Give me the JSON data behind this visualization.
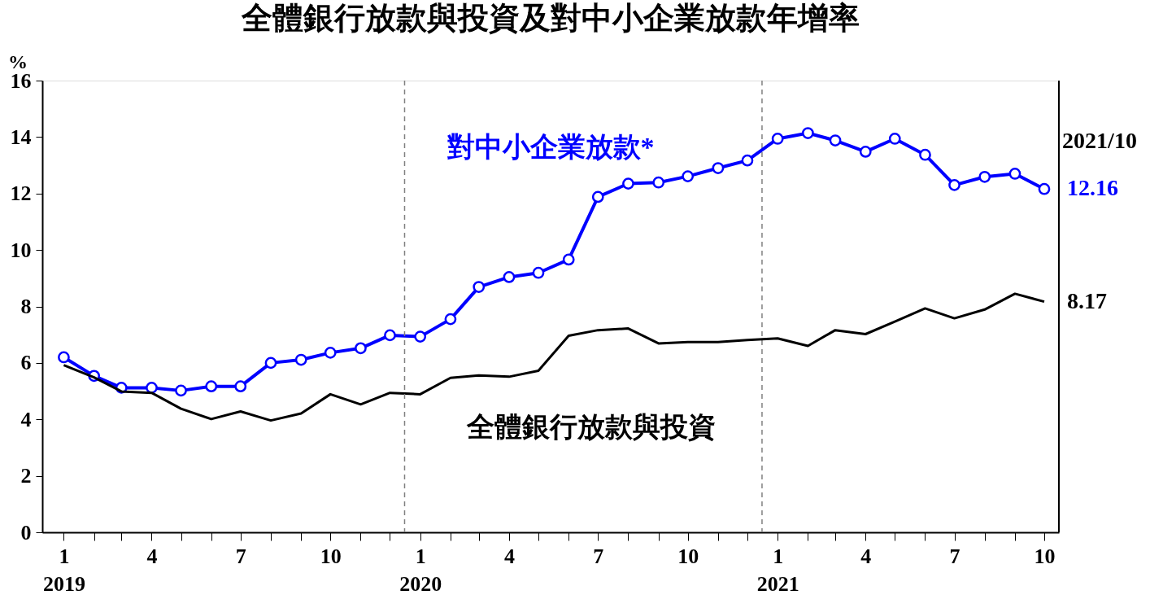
{
  "chart_data": {
    "type": "line",
    "title": "全體銀行放款與投資及對中小企業放款年增率",
    "ylabel": "%",
    "x": [
      "2019-01",
      "2019-02",
      "2019-03",
      "2019-04",
      "2019-05",
      "2019-06",
      "2019-07",
      "2019-08",
      "2019-09",
      "2019-10",
      "2019-11",
      "2019-12",
      "2020-01",
      "2020-02",
      "2020-03",
      "2020-04",
      "2020-05",
      "2020-06",
      "2020-07",
      "2020-08",
      "2020-09",
      "2020-10",
      "2020-11",
      "2020-12",
      "2021-01",
      "2021-02",
      "2021-03",
      "2021-04",
      "2021-05",
      "2021-06",
      "2021-07",
      "2021-08",
      "2021-09",
      "2021-10"
    ],
    "series": [
      {
        "name": "對中小企業放款*",
        "color": "#0000ff",
        "marker": "circle",
        "values": [
          6.2,
          5.54,
          5.12,
          5.12,
          5.02,
          5.17,
          5.17,
          6.0,
          6.11,
          6.36,
          6.52,
          6.98,
          6.93,
          7.55,
          8.69,
          9.04,
          9.19,
          9.66,
          11.88,
          12.35,
          12.39,
          12.61,
          12.9,
          13.17,
          13.94,
          14.14,
          13.88,
          13.48,
          13.94,
          13.37,
          12.3,
          12.59,
          12.7,
          12.16
        ],
        "value_labels": [
          null,
          null,
          null,
          null,
          null,
          null,
          null,
          null,
          null,
          null,
          null,
          null,
          null,
          null,
          null,
          null,
          null,
          null,
          null,
          null,
          null,
          null,
          null,
          null,
          null,
          null,
          null,
          null,
          null,
          null,
          null,
          null,
          null,
          "12.16"
        ]
      },
      {
        "name": "全體銀行放款與投資",
        "color": "#000000",
        "marker": "none",
        "values": [
          5.92,
          5.49,
          4.99,
          4.94,
          4.38,
          4.01,
          4.28,
          3.96,
          4.21,
          4.89,
          4.53,
          4.94,
          4.89,
          5.47,
          5.56,
          5.51,
          5.72,
          6.96,
          7.16,
          7.22,
          6.69,
          6.74,
          6.74,
          6.81,
          6.87,
          6.6,
          7.16,
          7.02,
          7.46,
          7.93,
          7.58,
          7.89,
          8.45,
          8.17
        ],
        "value_labels": [
          null,
          null,
          null,
          null,
          null,
          null,
          null,
          null,
          null,
          null,
          null,
          null,
          null,
          null,
          null,
          null,
          null,
          null,
          null,
          null,
          null,
          null,
          null,
          null,
          null,
          null,
          null,
          null,
          null,
          null,
          null,
          null,
          null,
          "8.17"
        ]
      }
    ],
    "annotations": [
      "2021/10"
    ],
    "xlim": [
      "2018-12-10",
      "2021-10-16"
    ],
    "xticks": [
      {
        "value": "2019-01",
        "label": "1\n2019"
      },
      {
        "value": "2019-02",
        "label": null
      },
      {
        "value": "2019-03",
        "label": null
      },
      {
        "value": "2019-04",
        "label": "4"
      },
      {
        "value": "2019-05",
        "label": null
      },
      {
        "value": "2019-06",
        "label": null
      },
      {
        "value": "2019-07",
        "label": "7"
      },
      {
        "value": "2019-08",
        "label": null
      },
      {
        "value": "2019-09",
        "label": null
      },
      {
        "value": "2019-10",
        "label": "10"
      },
      {
        "value": "2019-11",
        "label": null
      },
      {
        "value": "2019-12",
        "label": null
      },
      {
        "value": "2020-01",
        "label": "1\n2020"
      },
      {
        "value": "2020-02",
        "label": null
      },
      {
        "value": "2020-03",
        "label": null
      },
      {
        "value": "2020-04",
        "label": "4"
      },
      {
        "value": "2020-05",
        "label": null
      },
      {
        "value": "2020-06",
        "label": null
      },
      {
        "value": "2020-07",
        "label": "7"
      },
      {
        "value": "2020-08",
        "label": null
      },
      {
        "value": "2020-09",
        "label": null
      },
      {
        "value": "2020-10",
        "label": "10"
      },
      {
        "value": "2020-11",
        "label": null
      },
      {
        "value": "2020-12",
        "label": null
      },
      {
        "value": "2021-01",
        "label": "1\n2021"
      },
      {
        "value": "2021-02",
        "label": null
      },
      {
        "value": "2021-03",
        "label": null
      },
      {
        "value": "2021-04",
        "label": "4"
      },
      {
        "value": "2021-05",
        "label": null
      },
      {
        "value": "2021-06",
        "label": null
      },
      {
        "value": "2021-07",
        "label": "7"
      },
      {
        "value": "2021-08",
        "label": null
      },
      {
        "value": "2021-09",
        "label": null
      },
      {
        "value": "2021-10",
        "label": "10"
      }
    ],
    "ylim": [
      0,
      16
    ],
    "yticks": [
      0,
      2,
      4,
      6,
      8,
      10,
      12,
      14,
      16
    ],
    "ref_lines": [
      {
        "axis": "x",
        "value": "2019-12-16",
        "color": "#808080",
        "line_style": "dashed"
      },
      {
        "axis": "x",
        "value": "2020-12-16",
        "color": "#808080",
        "line_style": "dashed"
      }
    ],
    "grid": false
  }
}
